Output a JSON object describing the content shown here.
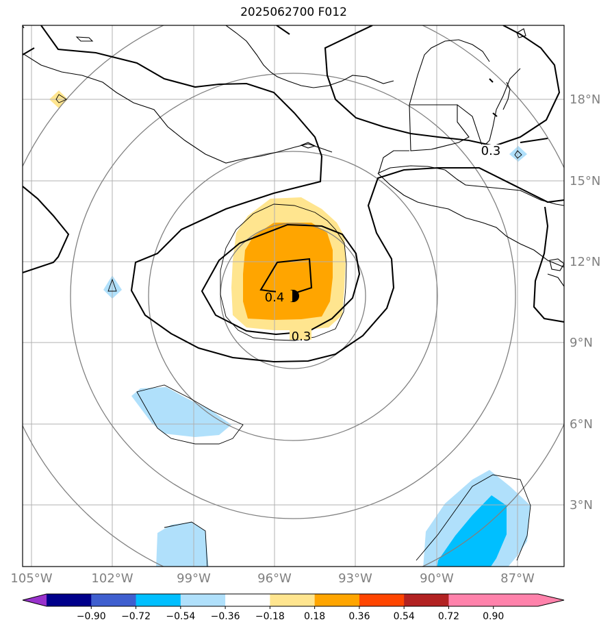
{
  "title": "2025062700 F012",
  "map": {
    "lon_labels": [
      "105°W",
      "102°W",
      "99°W",
      "96°W",
      "93°W",
      "90°W",
      "87°W"
    ],
    "lat_labels": [
      "18°N",
      "15°N",
      "12°N",
      "9°N",
      "6°N",
      "3°N"
    ],
    "contour_labels": [
      "0.3",
      "0.4",
      "0.3"
    ],
    "center_marker": "storm-center-dot",
    "colors": {
      "light_blue": "#b0e0fb",
      "blue": "#00bfff",
      "light_yellow": "#ffe58f",
      "orange": "#ffa500",
      "grid": "#b0b0b0",
      "range_rings": "#808080",
      "axis_labels": "#808080"
    }
  },
  "colorbar": {
    "ticks": [
      "−0.90",
      "−0.72",
      "−0.54",
      "−0.36",
      "−0.18",
      "0.18",
      "0.36",
      "0.54",
      "0.72",
      "0.90"
    ],
    "colors": [
      "#9932cc",
      "#00008b",
      "#3f5fcf",
      "#00bfff",
      "#b0e0fb",
      "#ffffff",
      "#ffe58f",
      "#ffa500",
      "#ff4500",
      "#b22222",
      "#ff82ab",
      "#ff82ab"
    ]
  }
}
